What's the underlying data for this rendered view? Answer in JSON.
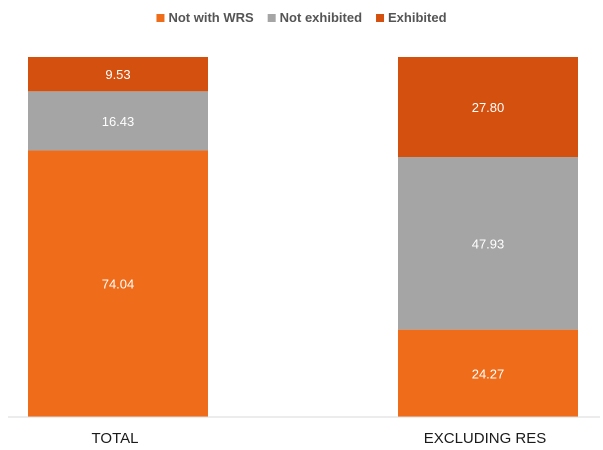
{
  "chart_data": {
    "type": "bar",
    "stacked": true,
    "categories": [
      "TOTAL",
      "EXCLUDING RES"
    ],
    "series": [
      {
        "name": "Not with WRS",
        "values": [
          74.04,
          24.27
        ],
        "color": "#ef6d1a"
      },
      {
        "name": "Not exhibited",
        "values": [
          16.43,
          47.93
        ],
        "color": "#a5a5a5"
      },
      {
        "name": "Exhibited",
        "values": [
          9.53,
          27.8
        ],
        "color": "#d4500f"
      }
    ],
    "data_labels": [
      [
        "74.04",
        "24.27"
      ],
      [
        "16.43",
        "47.93"
      ],
      [
        "9.53",
        "27.80"
      ]
    ],
    "ylim": [
      0,
      100
    ],
    "legend_position": "top-center",
    "grid": false,
    "title": "",
    "xlabel": "",
    "ylabel": ""
  }
}
